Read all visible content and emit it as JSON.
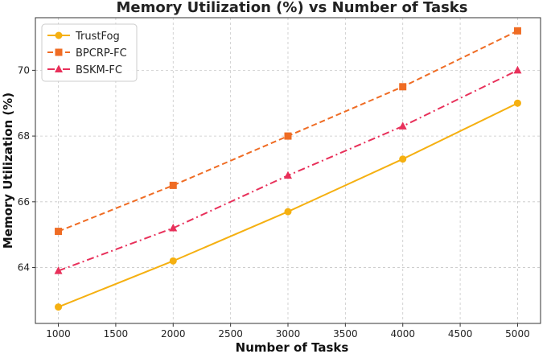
{
  "chart_data": {
    "type": "line",
    "title": "Memory Utilization (%) vs Number of Tasks",
    "xlabel": "Number of Tasks",
    "ylabel": "Memory Utilization (%)",
    "x": [
      1000,
      2000,
      3000,
      4000,
      5000
    ],
    "xlim": [
      800,
      5200
    ],
    "ylim": [
      62.3,
      71.6
    ],
    "xticks": [
      "1000",
      "1500",
      "2000",
      "2500",
      "3000",
      "3500",
      "4000",
      "4500",
      "5000"
    ],
    "yticks": [
      "64",
      "66",
      "68",
      "70"
    ],
    "grid": true,
    "legend_position": "top-left",
    "series": [
      {
        "name": "TrustFog",
        "values": [
          62.8,
          64.2,
          65.7,
          67.3,
          69.0
        ],
        "color": "#f5b011",
        "linestyle": "solid",
        "marker": "circle"
      },
      {
        "name": "BPCRP-FC",
        "values": [
          65.1,
          66.5,
          68.0,
          69.5,
          71.2
        ],
        "color": "#ef6c24",
        "linestyle": "dashed",
        "marker": "square"
      },
      {
        "name": "BSKM-FC",
        "values": [
          63.9,
          65.2,
          66.8,
          68.3,
          70.0
        ],
        "color": "#e8305a",
        "linestyle": "dashdot",
        "marker": "triangle"
      }
    ]
  }
}
